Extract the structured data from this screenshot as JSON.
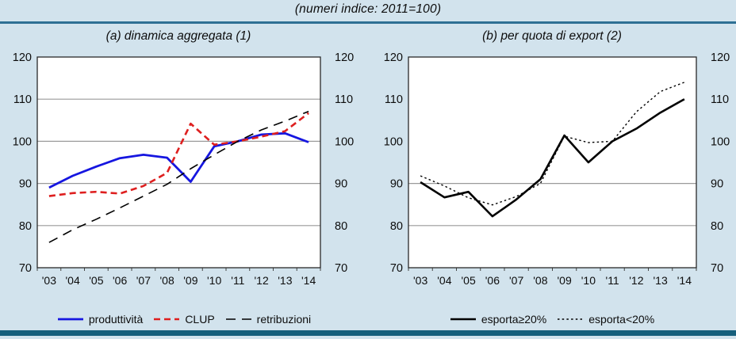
{
  "figure": {
    "title": "(numeri indice: 2011=100)"
  },
  "panels": [
    {
      "label": "(a) dinamica aggregata (1)"
    },
    {
      "label": "(b) per quota di export (2)"
    }
  ],
  "colors": {
    "background": "#d2e3ed",
    "top_rule": "#2e7094",
    "bottom_bar": "#16607c",
    "plot_border": "#2a2a2a",
    "gridline": "#9a9a9a",
    "blue_series": "#1616e0",
    "red_series": "#de1f1f",
    "black_series": "#000000"
  },
  "chart_data": [
    {
      "type": "line",
      "title": "(a) dinamica aggregata (1)",
      "xlabel": "",
      "ylabel": "",
      "categories": [
        "'03",
        "'04",
        "'05",
        "'06",
        "'07",
        "'08",
        "'09",
        "'10",
        "'11",
        "'12",
        "'13",
        "'14"
      ],
      "ylim": [
        70,
        120
      ],
      "yticks": [
        70,
        80,
        90,
        100,
        110,
        120
      ],
      "gridlines": [
        80,
        90,
        100,
        110
      ],
      "y_axis_labels": "both-sides",
      "legend_position": "bottom",
      "series": [
        {
          "name": "produttività",
          "color": "#1616e0",
          "dash": "solid",
          "width": 2.8,
          "values": [
            89,
            91.8,
            94,
            96,
            96.8,
            96.1,
            90.4,
            98.8,
            100,
            101.6,
            101.9,
            99.8
          ]
        },
        {
          "name": "CLUP",
          "color": "#de1f1f",
          "dash": "dashed",
          "width": 2.6,
          "values": [
            87,
            87.7,
            88,
            87.6,
            89.4,
            92.5,
            104.2,
            99.2,
            100,
            101.1,
            102.4,
            106.7
          ]
        },
        {
          "name": "retribuzioni",
          "color": "#000000",
          "dash": "longdash",
          "width": 1.6,
          "values": [
            76,
            79,
            81.5,
            84.2,
            87,
            89.8,
            93.5,
            96.8,
            100,
            102.7,
            104.8,
            107.1
          ]
        }
      ]
    },
    {
      "type": "line",
      "title": "(b) per quota di export (2)",
      "xlabel": "",
      "ylabel": "",
      "categories": [
        "'03",
        "'04",
        "'05",
        "'06",
        "'07",
        "'08",
        "'09",
        "'10",
        "'11",
        "'12",
        "'13",
        "'14"
      ],
      "ylim": [
        70,
        120
      ],
      "yticks": [
        70,
        80,
        90,
        100,
        110,
        120
      ],
      "gridlines": [
        80,
        90
      ],
      "y_axis_labels": "both-sides",
      "legend_position": "bottom",
      "series": [
        {
          "name": "esporta≥20%",
          "color": "#000000",
          "dash": "solid",
          "width": 2.6,
          "values": [
            90.3,
            86.7,
            88,
            82.2,
            86.2,
            91,
            101.4,
            95,
            100,
            103,
            106.8,
            110
          ]
        },
        {
          "name": "esporta<20%",
          "color": "#000000",
          "dash": "dotted",
          "width": 1.4,
          "values": [
            91.8,
            89.4,
            86.6,
            84.9,
            86.9,
            90,
            101.2,
            99.7,
            100,
            107,
            111.8,
            114
          ]
        }
      ]
    }
  ]
}
